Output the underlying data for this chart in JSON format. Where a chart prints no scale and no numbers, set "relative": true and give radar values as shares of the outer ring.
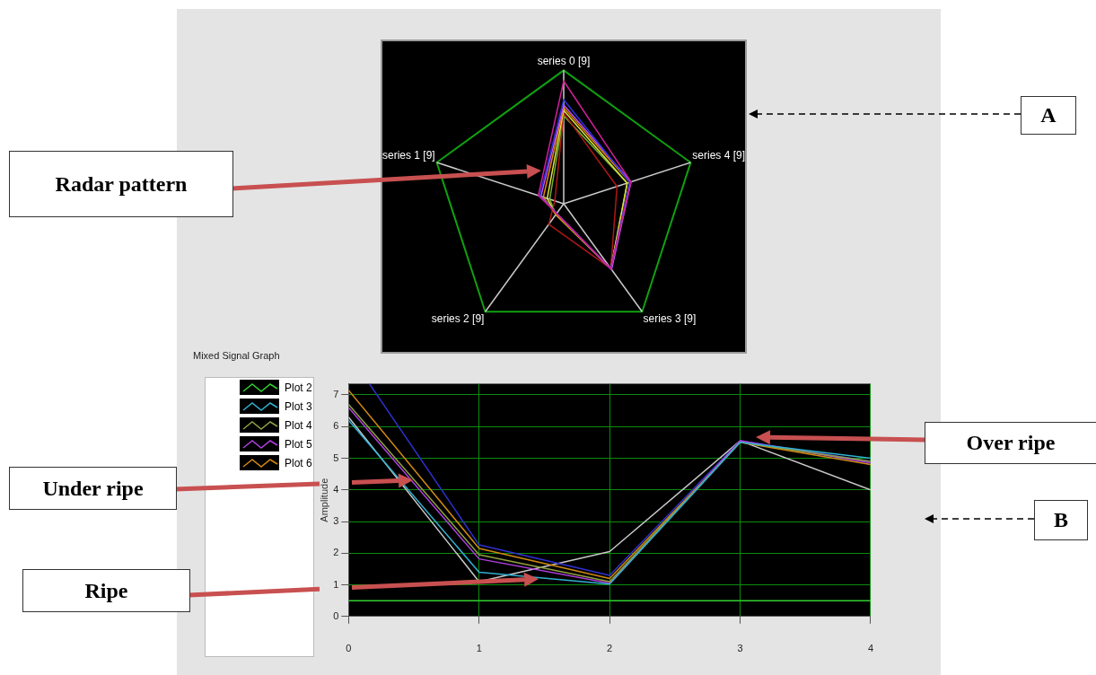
{
  "chart_data": [
    {
      "type": "radar",
      "relative": true,
      "grid": true,
      "categories": [
        "series 0 [9]",
        "series 4 [9]",
        "series 3 [9]",
        "series 2 [9]",
        "series 1 [9]"
      ],
      "series": [
        {
          "color": "#d0209a",
          "values": [
            0.92,
            0.53,
            0.6,
            0.09,
            0.2
          ]
        },
        {
          "color": "#3030e0",
          "values": [
            0.78,
            0.52,
            0.6,
            0.09,
            0.19
          ]
        },
        {
          "color": "#c050f0",
          "values": [
            0.74,
            0.53,
            0.61,
            0.09,
            0.18
          ]
        },
        {
          "color": "#e08a00",
          "values": [
            0.72,
            0.52,
            0.6,
            0.1,
            0.16
          ]
        },
        {
          "color": "#e0e040",
          "values": [
            0.7,
            0.5,
            0.6,
            0.1,
            0.13
          ]
        },
        {
          "color": "#b01818",
          "values": [
            0.68,
            0.42,
            0.6,
            0.19,
            0.07
          ]
        },
        {
          "color": "#70b030",
          "values": [
            0.66,
            0.5,
            0.6,
            0.1,
            0.11
          ]
        }
      ],
      "annotations": [
        "Radar pattern",
        "A"
      ]
    },
    {
      "type": "line",
      "title": "Mixed Signal Graph",
      "ylabel": "Amplitude",
      "legend": "left",
      "marker": "none",
      "grid": true,
      "x": [
        0,
        1,
        2,
        3,
        4
      ],
      "xlim": [
        0,
        4
      ],
      "xticks": [
        0,
        1,
        2,
        3,
        4
      ],
      "ylim": [
        0,
        7.35
      ],
      "yticks": [
        0,
        1,
        2,
        3,
        4,
        5,
        6,
        7
      ],
      "series": [
        {
          "name": "Plot 2",
          "color": "#30d030",
          "values": [
            0.5,
            0.5,
            0.5,
            0.5,
            0.5
          ]
        },
        {
          "name": "Plot 3",
          "color": "#30b0d0",
          "values": [
            6.2,
            1.4,
            1.02,
            5.5,
            5.0
          ]
        },
        {
          "name": "Plot 4",
          "color": "#90a040",
          "values": [
            6.7,
            1.95,
            1.1,
            5.5,
            4.9
          ]
        },
        {
          "name": "Plot 5",
          "color": "#b040e0",
          "values": [
            6.6,
            1.82,
            1.05,
            5.55,
            4.85
          ]
        },
        {
          "name": "Plot 6",
          "color": "#d08a10",
          "values": [
            7.15,
            2.15,
            1.2,
            5.5,
            4.8
          ]
        },
        {
          "color": "#3030d0",
          "x": [
            0.16,
            1,
            2,
            3,
            4
          ],
          "values": [
            7.35,
            2.26,
            1.3,
            5.55,
            4.9
          ]
        },
        {
          "color": "#c8c8c8",
          "values": [
            6.3,
            1.1,
            2.05,
            5.55,
            4.0
          ]
        }
      ],
      "annotations": [
        "Under ripe",
        "Ripe",
        "Over ripe",
        "B"
      ]
    }
  ]
}
